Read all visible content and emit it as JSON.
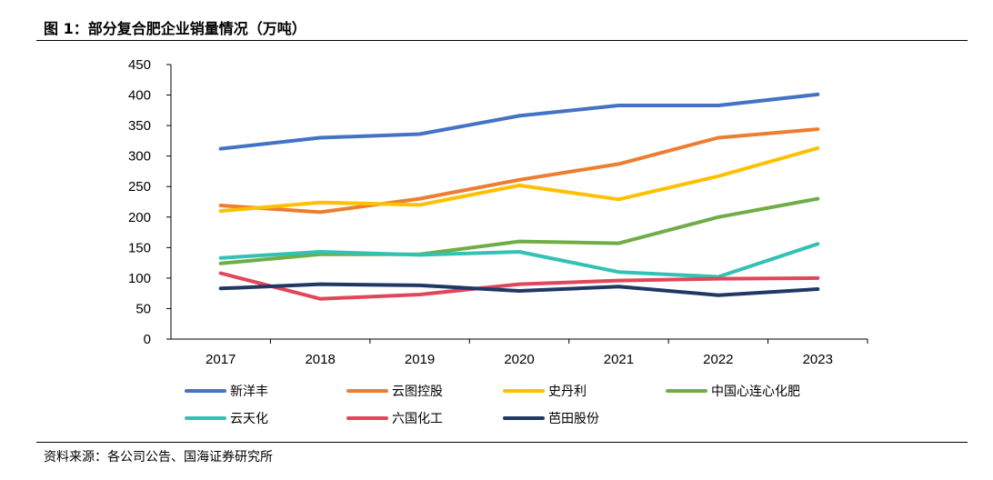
{
  "header": {
    "title": "图 1：部分复合肥企业销量情况（万吨）"
  },
  "footer": {
    "source": "资料来源：各公司公告、国海证券研究所"
  },
  "chart_data": {
    "type": "line",
    "title": "图 1：部分复合肥企业销量情况（万吨）",
    "xlabel": "",
    "ylabel": "",
    "x": [
      "2017",
      "2018",
      "2019",
      "2020",
      "2021",
      "2022",
      "2023"
    ],
    "ylim": [
      0,
      450
    ],
    "yticks": [
      0,
      50,
      100,
      150,
      200,
      250,
      300,
      350,
      400,
      450
    ],
    "grid": false,
    "legend_position": "bottom",
    "series": [
      {
        "name": "新洋丰",
        "color": "#4472C4",
        "values": [
          312,
          330,
          336,
          366,
          383,
          383,
          401
        ]
      },
      {
        "name": "云图控股",
        "color": "#ED7D31",
        "values": [
          219,
          208,
          230,
          261,
          287,
          330,
          344
        ]
      },
      {
        "name": "史丹利",
        "color": "#FFC000",
        "values": [
          210,
          224,
          220,
          252,
          229,
          267,
          313
        ]
      },
      {
        "name": "中国心连心化肥",
        "color": "#70AD47",
        "values": [
          124,
          139,
          139,
          160,
          157,
          200,
          230
        ]
      },
      {
        "name": "云天化",
        "color": "#33C1B4",
        "values": [
          133,
          143,
          138,
          143,
          110,
          102,
          156
        ]
      },
      {
        "name": "六国化工",
        "color": "#E0475B",
        "values": [
          108,
          66,
          73,
          90,
          96,
          99,
          100
        ]
      },
      {
        "name": "芭田股份",
        "color": "#1F3864",
        "values": [
          83,
          90,
          88,
          79,
          86,
          72,
          82
        ]
      }
    ]
  }
}
